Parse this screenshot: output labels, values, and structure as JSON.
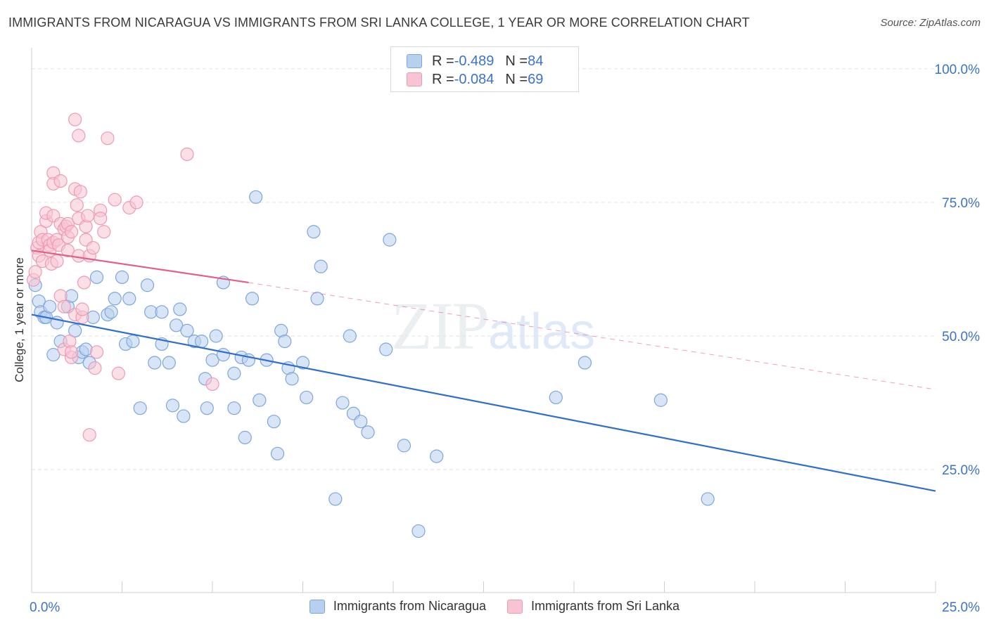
{
  "title": "IMMIGRANTS FROM NICARAGUA VS IMMIGRANTS FROM SRI LANKA COLLEGE, 1 YEAR OR MORE CORRELATION CHART",
  "source": "Source: ZipAtlas.com",
  "watermark": {
    "zip": "ZIP",
    "atlas": "atlas"
  },
  "legend_top": [
    {
      "r_label": "R = ",
      "r_value": "-0.489",
      "n_label": "N = ",
      "n_value": "84"
    },
    {
      "r_label": "R = ",
      "r_value": "-0.084",
      "n_label": "N = ",
      "n_value": "69"
    }
  ],
  "colors": {
    "blue_fill": "#b8d0f0",
    "blue_stroke": "#7ea6dc",
    "blue_line": "#2f6fcb",
    "pink_fill": "#f8c4d4",
    "pink_stroke": "#ee9ab4",
    "pink_line": "#e0608a",
    "tick_label": "#3b73c9",
    "grid": "#e3e3e3"
  },
  "chart_data": {
    "type": "scatter",
    "title": "IMMIGRANTS FROM NICARAGUA VS IMMIGRANTS FROM SRI LANKA COLLEGE, 1 YEAR OR MORE CORRELATION CHART",
    "xlabel": "",
    "ylabel": "College, 1 year or more",
    "xlim": [
      0,
      25
    ],
    "ylim": [
      2,
      103
    ],
    "x_ticks_labels": [
      "0.0%",
      "25.0%"
    ],
    "y_ticks": [
      25,
      50,
      75,
      100
    ],
    "y_tick_labels": [
      "25.0%",
      "50.0%",
      "75.0%",
      "100.0%"
    ],
    "grid": true,
    "legend_position": "bottom",
    "series": [
      {
        "name": "Immigrants from Nicaragua",
        "color": "#7ea6dc",
        "r": -0.489,
        "n": 84,
        "trend": {
          "x": [
            0,
            25
          ],
          "y": [
            54,
            21
          ],
          "dashed_extension": false
        },
        "points": [
          [
            0.1,
            59.5
          ],
          [
            0.2,
            56.5
          ],
          [
            0.25,
            54.5
          ],
          [
            0.35,
            53.5
          ],
          [
            0.4,
            53.5
          ],
          [
            0.5,
            55.5
          ],
          [
            0.6,
            46.5
          ],
          [
            0.7,
            52.5
          ],
          [
            0.8,
            49
          ],
          [
            1.0,
            55.5
          ],
          [
            1.1,
            57.5
          ],
          [
            1.2,
            51
          ],
          [
            1.3,
            46
          ],
          [
            1.4,
            47
          ],
          [
            1.5,
            47.5
          ],
          [
            1.6,
            45
          ],
          [
            1.7,
            53.5
          ],
          [
            1.8,
            61
          ],
          [
            2.1,
            54
          ],
          [
            2.2,
            54.5
          ],
          [
            2.3,
            57
          ],
          [
            2.5,
            61
          ],
          [
            2.6,
            48.5
          ],
          [
            2.7,
            57
          ],
          [
            2.8,
            49
          ],
          [
            3.0,
            36.5
          ],
          [
            3.2,
            59.5
          ],
          [
            3.3,
            54.5
          ],
          [
            3.4,
            45
          ],
          [
            3.6,
            54.5
          ],
          [
            3.6,
            48.5
          ],
          [
            3.8,
            45
          ],
          [
            3.9,
            37
          ],
          [
            4.0,
            52
          ],
          [
            4.1,
            55
          ],
          [
            4.2,
            35
          ],
          [
            4.3,
            51
          ],
          [
            4.5,
            49
          ],
          [
            4.7,
            49
          ],
          [
            4.8,
            42
          ],
          [
            4.85,
            36.5
          ],
          [
            5.0,
            45.5
          ],
          [
            5.1,
            50
          ],
          [
            5.3,
            46.5
          ],
          [
            5.3,
            60
          ],
          [
            5.6,
            43
          ],
          [
            5.6,
            36.5
          ],
          [
            5.8,
            46
          ],
          [
            5.9,
            31
          ],
          [
            6.1,
            57
          ],
          [
            6.0,
            45.5
          ],
          [
            6.2,
            76
          ],
          [
            6.3,
            38
          ],
          [
            6.5,
            45.5
          ],
          [
            6.7,
            34
          ],
          [
            6.8,
            28
          ],
          [
            6.9,
            51
          ],
          [
            7.0,
            49
          ],
          [
            7.1,
            44
          ],
          [
            7.2,
            42
          ],
          [
            7.5,
            45
          ],
          [
            7.6,
            38.5
          ],
          [
            7.8,
            69.5
          ],
          [
            7.9,
            57
          ],
          [
            8.0,
            63
          ],
          [
            8.4,
            19.5
          ],
          [
            8.6,
            37.5
          ],
          [
            8.8,
            50
          ],
          [
            8.9,
            35.5
          ],
          [
            9.1,
            34
          ],
          [
            9.3,
            32
          ],
          [
            9.8,
            47.5
          ],
          [
            9.9,
            68
          ],
          [
            10.3,
            29.5
          ],
          [
            10.7,
            13.5
          ],
          [
            11.2,
            27.5
          ],
          [
            14.5,
            38.5
          ],
          [
            15.3,
            45
          ],
          [
            17.4,
            38
          ],
          [
            18.7,
            19.5
          ]
        ]
      },
      {
        "name": "Immigrants from Sri Lanka",
        "color": "#ee9ab4",
        "r": -0.084,
        "n": 69,
        "trend": {
          "x": [
            0,
            6
          ],
          "y": [
            66,
            60
          ],
          "dashed_extension": {
            "x": [
              6,
              25
            ],
            "y": [
              60,
              40
            ]
          }
        },
        "points": [
          [
            0.05,
            60.5
          ],
          [
            0.1,
            62
          ],
          [
            0.15,
            66.5
          ],
          [
            0.2,
            67.5
          ],
          [
            0.2,
            65
          ],
          [
            0.25,
            69.5
          ],
          [
            0.3,
            68
          ],
          [
            0.3,
            64
          ],
          [
            0.4,
            71.5
          ],
          [
            0.4,
            73
          ],
          [
            0.45,
            68
          ],
          [
            0.5,
            67
          ],
          [
            0.5,
            66
          ],
          [
            0.55,
            63.5
          ],
          [
            0.6,
            67.5
          ],
          [
            0.6,
            72.5
          ],
          [
            0.6,
            80.5
          ],
          [
            0.6,
            78.5
          ],
          [
            0.7,
            68
          ],
          [
            0.7,
            64
          ],
          [
            0.75,
            67
          ],
          [
            0.8,
            71
          ],
          [
            0.8,
            79
          ],
          [
            0.8,
            57.5
          ],
          [
            0.9,
            55.5
          ],
          [
            0.9,
            47.5
          ],
          [
            0.9,
            70
          ],
          [
            0.95,
            70.5
          ],
          [
            1.0,
            71
          ],
          [
            1.0,
            68.5
          ],
          [
            1.0,
            66
          ],
          [
            1.05,
            49
          ],
          [
            1.1,
            46
          ],
          [
            1.1,
            47
          ],
          [
            1.1,
            69.5
          ],
          [
            1.2,
            77.5
          ],
          [
            1.2,
            90.5
          ],
          [
            1.2,
            54
          ],
          [
            1.25,
            74.5
          ],
          [
            1.3,
            65
          ],
          [
            1.3,
            72
          ],
          [
            1.3,
            87.5
          ],
          [
            1.35,
            77
          ],
          [
            1.4,
            53.5
          ],
          [
            1.4,
            55
          ],
          [
            1.45,
            60
          ],
          [
            1.5,
            68
          ],
          [
            1.5,
            70.5
          ],
          [
            1.55,
            72.5
          ],
          [
            1.6,
            65
          ],
          [
            1.6,
            31.5
          ],
          [
            1.7,
            66.5
          ],
          [
            1.75,
            44
          ],
          [
            1.8,
            47
          ],
          [
            1.9,
            73.5
          ],
          [
            1.9,
            72
          ],
          [
            2.0,
            69.5
          ],
          [
            2.1,
            87
          ],
          [
            2.3,
            75.5
          ],
          [
            2.4,
            43
          ],
          [
            2.7,
            74
          ],
          [
            2.9,
            75
          ],
          [
            4.3,
            84
          ],
          [
            5.0,
            41
          ]
        ]
      }
    ]
  },
  "legend_bottom": [
    {
      "label": "Immigrants from Nicaragua"
    },
    {
      "label": "Immigrants from Sri Lanka"
    }
  ]
}
